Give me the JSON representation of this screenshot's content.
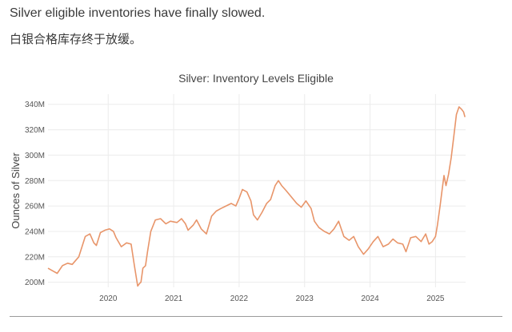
{
  "caption": {
    "english": "Silver eligible inventories have finally slowed.",
    "chinese": "白银合格库存终于放缓。"
  },
  "chart_data": {
    "type": "line",
    "title": "Silver: Inventory Levels Eligible",
    "xlabel": "",
    "ylabel": "Ounces of Silver",
    "x_ticks": [
      "2020",
      "2021",
      "2022",
      "2023",
      "2024",
      "2025"
    ],
    "y_ticks": [
      "200M",
      "220M",
      "240M",
      "260M",
      "280M",
      "300M",
      "320M",
      "340M"
    ],
    "xlim": [
      2019.08,
      2025.46
    ],
    "ylim": [
      196,
      348
    ],
    "grid": true,
    "line_color": "#e8956a",
    "series": [
      {
        "x": [
          2019.08,
          2019.15,
          2019.22,
          2019.3,
          2019.38,
          2019.45,
          2019.55,
          2019.65,
          2019.72,
          2019.78,
          2019.82,
          2019.88,
          2019.95,
          2020.02,
          2020.08,
          2020.12,
          2020.2,
          2020.28,
          2020.35,
          2020.4,
          2020.45,
          2020.48,
          2020.5,
          2020.53,
          2020.57,
          2020.6,
          2020.65,
          2020.72,
          2020.8,
          2020.88,
          2020.95,
          2021.05,
          2021.12,
          2021.18,
          2021.22,
          2021.3,
          2021.35,
          2021.42,
          2021.5,
          2021.58,
          2021.65,
          2021.72,
          2021.8,
          2021.88,
          2021.95,
          2022.0,
          2022.05,
          2022.12,
          2022.18,
          2022.22,
          2022.28,
          2022.35,
          2022.42,
          2022.48,
          2022.55,
          2022.6,
          2022.65,
          2022.72,
          2022.8,
          2022.88,
          2022.95,
          2023.02,
          2023.1,
          2023.15,
          2023.22,
          2023.3,
          2023.38,
          2023.45,
          2023.52,
          2023.6,
          2023.68,
          2023.75,
          2023.82,
          2023.9,
          2023.97,
          2024.05,
          2024.12,
          2024.2,
          2024.28,
          2024.35,
          2024.42,
          2024.5,
          2024.55,
          2024.62,
          2024.7,
          2024.78,
          2024.85,
          2024.9,
          2024.95,
          2025.0,
          2025.03,
          2025.07,
          2025.1,
          2025.13,
          2025.16,
          2025.2,
          2025.24,
          2025.28,
          2025.32,
          2025.36,
          2025.4,
          2025.43,
          2025.45
        ],
        "y": [
          211,
          209,
          207,
          213,
          215,
          214,
          220,
          236,
          238,
          231,
          229,
          239,
          241,
          242,
          240,
          235,
          228,
          231,
          230,
          213,
          197,
          199,
          200,
          211,
          213,
          224,
          240,
          249,
          250,
          246,
          248,
          247,
          250,
          246,
          241,
          245,
          249,
          242,
          238,
          252,
          256,
          258,
          260,
          262,
          260,
          266,
          273,
          271,
          264,
          253,
          249,
          255,
          262,
          265,
          276,
          280,
          276,
          272,
          267,
          262,
          259,
          264,
          258,
          248,
          243,
          240,
          238,
          242,
          248,
          236,
          233,
          236,
          228,
          222,
          226,
          232,
          236,
          228,
          230,
          234,
          231,
          230,
          224,
          235,
          236,
          232,
          238,
          230,
          232,
          236,
          245,
          260,
          272,
          284,
          276,
          285,
          298,
          315,
          332,
          338,
          336,
          334,
          330
        ]
      }
    ]
  }
}
